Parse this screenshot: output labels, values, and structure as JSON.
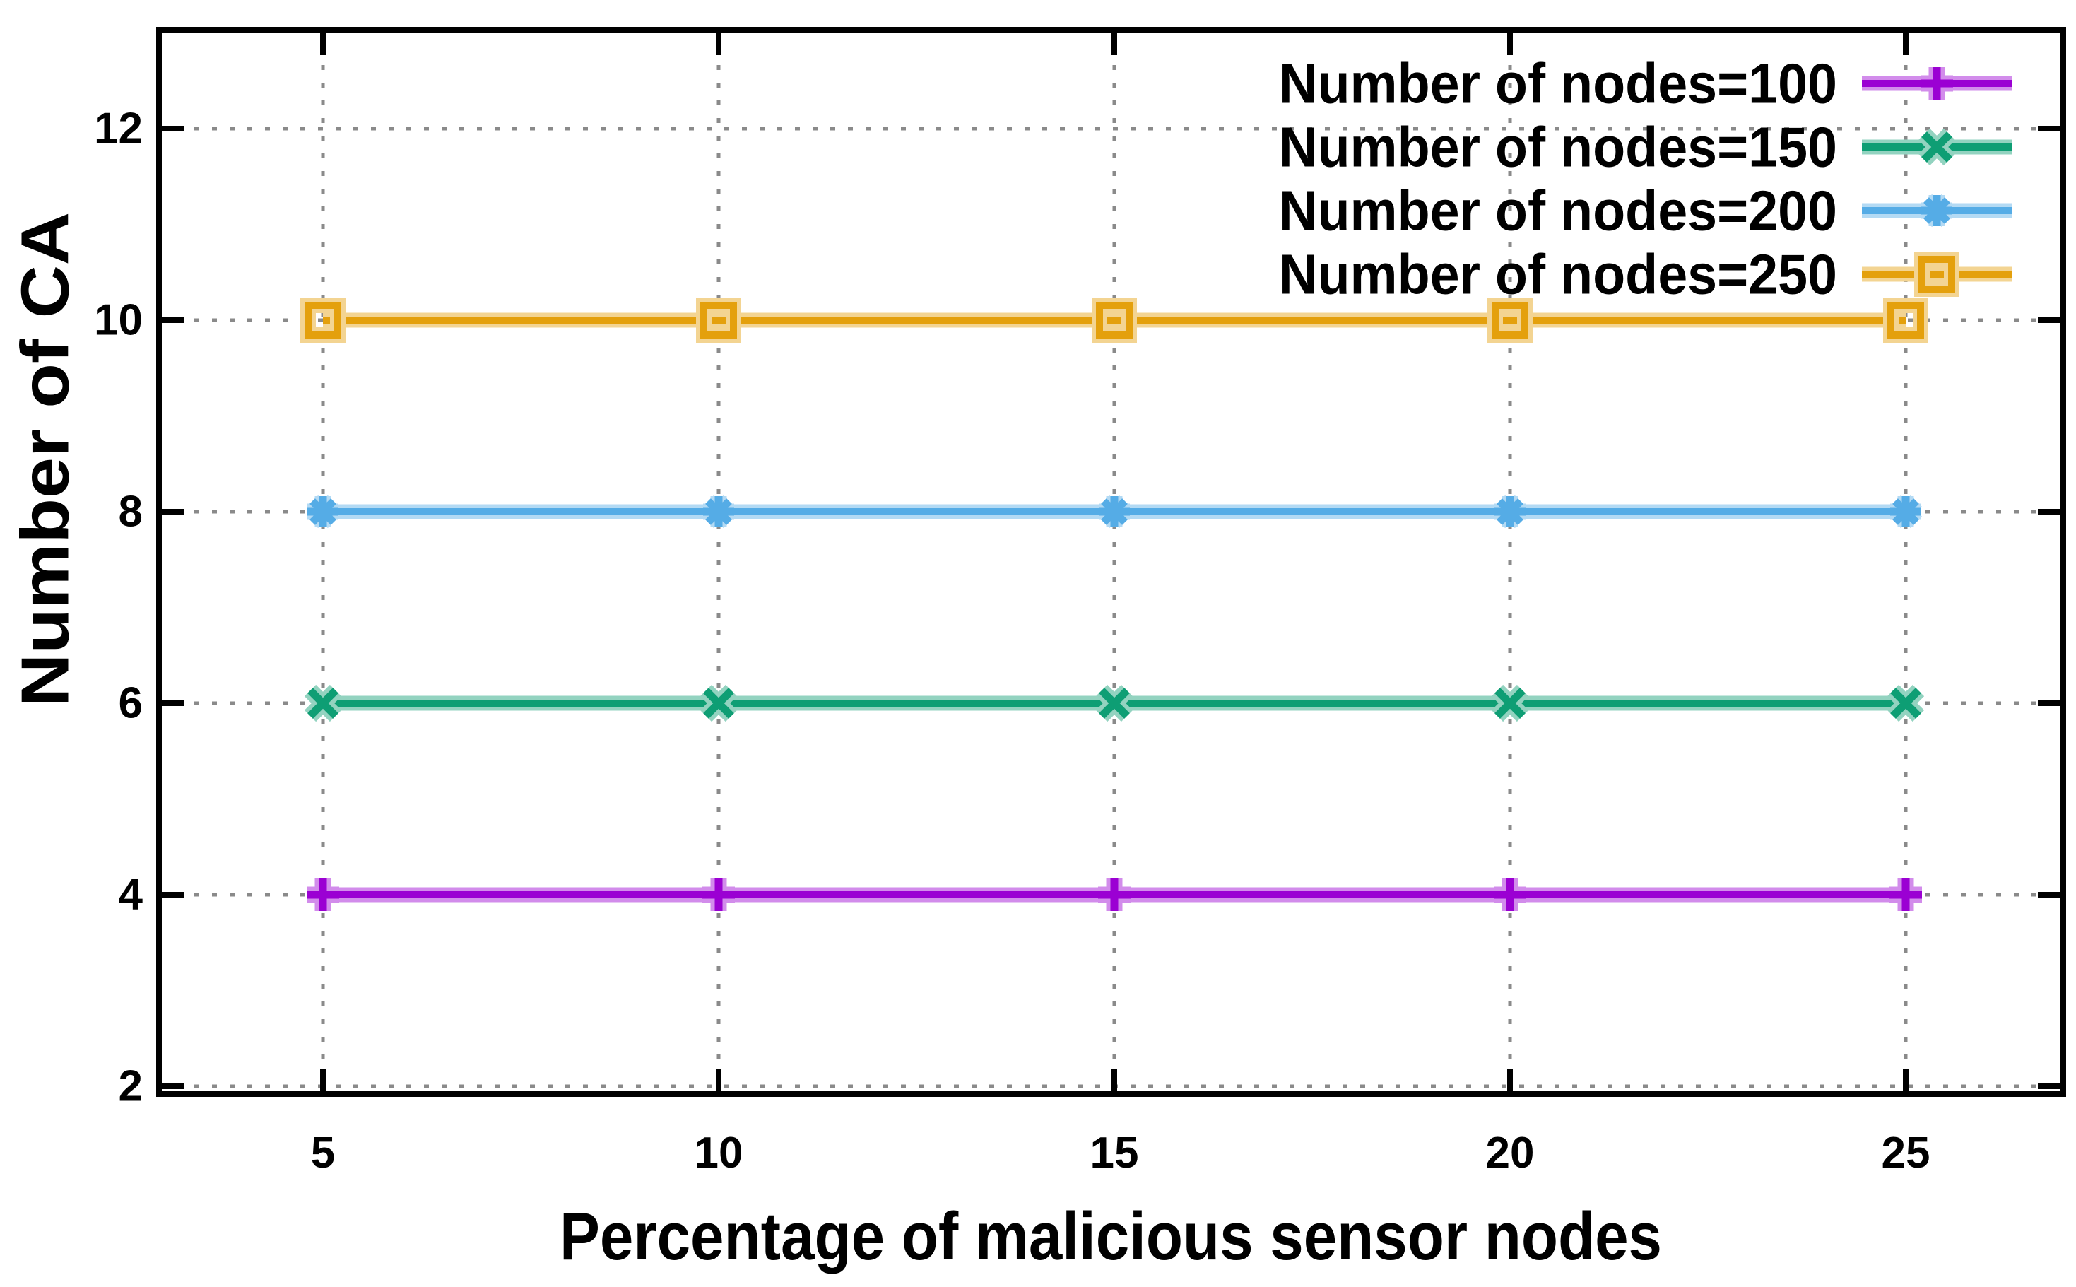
{
  "chart_data": {
    "type": "line",
    "title": "",
    "xlabel": "Percentage of malicious sensor nodes",
    "ylabel": "Number of CA",
    "x": [
      5,
      10,
      15,
      20,
      25
    ],
    "x_ticks": [
      "5",
      "10",
      "15",
      "20",
      "25"
    ],
    "y_ticks": [
      "2",
      "4",
      "6",
      "8",
      "10",
      "12"
    ],
    "xlim": [
      2.9,
      27
    ],
    "ylim": [
      2,
      13.1
    ],
    "grid": "dotted",
    "grid_color": "#8a8a8a",
    "axis_color": "#000000",
    "background_color": "#ffffff",
    "legend_position": "top-right-inside",
    "series": [
      {
        "name": "Number of nodes=100",
        "values": [
          4,
          4,
          4,
          4,
          4
        ],
        "color": "#9B00D3",
        "marker": "plus"
      },
      {
        "name": "Number of nodes=150",
        "values": [
          6,
          6,
          6,
          6,
          6
        ],
        "color": "#0E9E74",
        "marker": "cross"
      },
      {
        "name": "Number of nodes=200",
        "values": [
          8,
          8,
          8,
          8,
          8
        ],
        "color": "#55ACE6",
        "marker": "asterisk"
      },
      {
        "name": "Number of nodes=250",
        "values": [
          10,
          10,
          10,
          10,
          10
        ],
        "color": "#E4A00C",
        "marker": "square-open"
      }
    ]
  }
}
